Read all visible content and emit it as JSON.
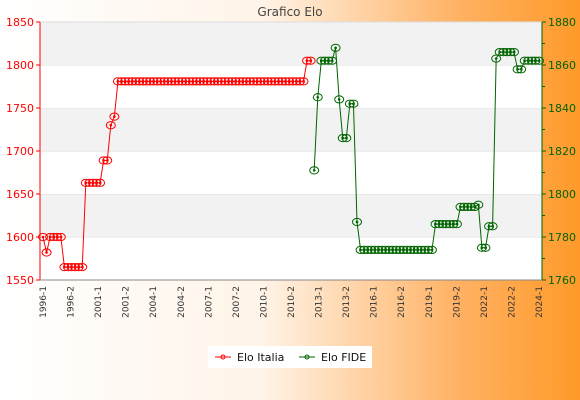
{
  "chart_data": {
    "type": "line",
    "title": "Grafico Elo",
    "xlabel": "",
    "ylabel": "",
    "colors": {
      "italia": "#ff0000",
      "fide": "#006400"
    },
    "y_left": {
      "min": 1550,
      "max": 1850,
      "ticks": [
        "1550",
        "1600",
        "1650",
        "1700",
        "1750",
        "1800",
        "1850"
      ]
    },
    "y_right": {
      "min": 1760,
      "max": 1880,
      "ticks": [
        "1760",
        "1780",
        "1800",
        "1820",
        "1840",
        "1860",
        "1880"
      ]
    },
    "grid": true,
    "legend_placement": "bottom-center",
    "x_count": 140,
    "x_tick_labels": [
      "1996-1",
      "1996-2",
      "2001-1",
      "2001-2",
      "2004-1",
      "2004-2",
      "2007-1",
      "2007-2",
      "2010-1",
      "2010-2",
      "2013-1",
      "2013-2",
      "2016-1",
      "2016-2",
      "2019-1",
      "2019-2",
      "2022-1",
      "2022-2",
      "2024-1"
    ],
    "series": [
      {
        "name": "Elo Italia",
        "axis": "left",
        "color": "#ff0000",
        "points": [
          [
            0,
            1600
          ],
          [
            1,
            1582
          ],
          [
            2,
            1600
          ],
          [
            3,
            1600
          ],
          [
            4,
            1600
          ],
          [
            5,
            1600
          ],
          [
            6,
            1565
          ],
          [
            7,
            1565
          ],
          [
            8,
            1565
          ],
          [
            9,
            1565
          ],
          [
            10,
            1565
          ],
          [
            11,
            1565
          ],
          [
            12,
            1663
          ],
          [
            13,
            1663
          ],
          [
            14,
            1663
          ],
          [
            15,
            1663
          ],
          [
            16,
            1663
          ],
          [
            17,
            1689
          ],
          [
            18,
            1689
          ],
          [
            19,
            1730
          ],
          [
            20,
            1740
          ],
          [
            21,
            1781
          ],
          [
            22,
            1781
          ],
          [
            23,
            1781
          ],
          [
            24,
            1781
          ],
          [
            25,
            1781
          ],
          [
            26,
            1781
          ],
          [
            27,
            1781
          ],
          [
            28,
            1781
          ],
          [
            29,
            1781
          ],
          [
            30,
            1781
          ],
          [
            31,
            1781
          ],
          [
            32,
            1781
          ],
          [
            33,
            1781
          ],
          [
            34,
            1781
          ],
          [
            35,
            1781
          ],
          [
            36,
            1781
          ],
          [
            37,
            1781
          ],
          [
            38,
            1781
          ],
          [
            39,
            1781
          ],
          [
            40,
            1781
          ],
          [
            41,
            1781
          ],
          [
            42,
            1781
          ],
          [
            43,
            1781
          ],
          [
            44,
            1781
          ],
          [
            45,
            1781
          ],
          [
            46,
            1781
          ],
          [
            47,
            1781
          ],
          [
            48,
            1781
          ],
          [
            49,
            1781
          ],
          [
            50,
            1781
          ],
          [
            51,
            1781
          ],
          [
            52,
            1781
          ],
          [
            53,
            1781
          ],
          [
            54,
            1781
          ],
          [
            55,
            1781
          ],
          [
            56,
            1781
          ],
          [
            57,
            1781
          ],
          [
            58,
            1781
          ],
          [
            59,
            1781
          ],
          [
            60,
            1781
          ],
          [
            61,
            1781
          ],
          [
            62,
            1781
          ],
          [
            63,
            1781
          ],
          [
            64,
            1781
          ],
          [
            65,
            1781
          ],
          [
            66,
            1781
          ],
          [
            67,
            1781
          ],
          [
            68,
            1781
          ],
          [
            69,
            1781
          ],
          [
            70,
            1781
          ],
          [
            71,
            1781
          ],
          [
            72,
            1781
          ],
          [
            73,
            1781
          ],
          [
            74,
            1805
          ],
          [
            75,
            1805
          ]
        ]
      },
      {
        "name": "Elo FIDE",
        "axis": "right",
        "color": "#006400",
        "points": [
          [
            76,
            1811
          ],
          [
            77,
            1845
          ],
          [
            78,
            1862
          ],
          [
            79,
            1862
          ],
          [
            80,
            1862
          ],
          [
            81,
            1862
          ],
          [
            82,
            1868
          ],
          [
            83,
            1844
          ],
          [
            84,
            1826
          ],
          [
            85,
            1826
          ],
          [
            86,
            1842
          ],
          [
            87,
            1842
          ],
          [
            88,
            1787
          ],
          [
            89,
            1774
          ],
          [
            90,
            1774
          ],
          [
            91,
            1774
          ],
          [
            92,
            1774
          ],
          [
            93,
            1774
          ],
          [
            94,
            1774
          ],
          [
            95,
            1774
          ],
          [
            96,
            1774
          ],
          [
            97,
            1774
          ],
          [
            98,
            1774
          ],
          [
            99,
            1774
          ],
          [
            100,
            1774
          ],
          [
            101,
            1774
          ],
          [
            102,
            1774
          ],
          [
            103,
            1774
          ],
          [
            104,
            1774
          ],
          [
            105,
            1774
          ],
          [
            106,
            1774
          ],
          [
            107,
            1774
          ],
          [
            108,
            1774
          ],
          [
            109,
            1774
          ],
          [
            110,
            1786
          ],
          [
            111,
            1786
          ],
          [
            112,
            1786
          ],
          [
            113,
            1786
          ],
          [
            114,
            1786
          ],
          [
            115,
            1786
          ],
          [
            116,
            1786
          ],
          [
            117,
            1794
          ],
          [
            118,
            1794
          ],
          [
            119,
            1794
          ],
          [
            120,
            1794
          ],
          [
            121,
            1794
          ],
          [
            122,
            1795
          ],
          [
            123,
            1775
          ],
          [
            124,
            1775
          ],
          [
            125,
            1785
          ],
          [
            126,
            1785
          ],
          [
            127,
            1863
          ],
          [
            128,
            1866
          ],
          [
            129,
            1866
          ],
          [
            130,
            1866
          ],
          [
            131,
            1866
          ],
          [
            132,
            1866
          ],
          [
            133,
            1858
          ],
          [
            134,
            1858
          ],
          [
            135,
            1862
          ],
          [
            136,
            1862
          ],
          [
            137,
            1862
          ],
          [
            138,
            1862
          ],
          [
            139,
            1862
          ]
        ]
      }
    ]
  }
}
